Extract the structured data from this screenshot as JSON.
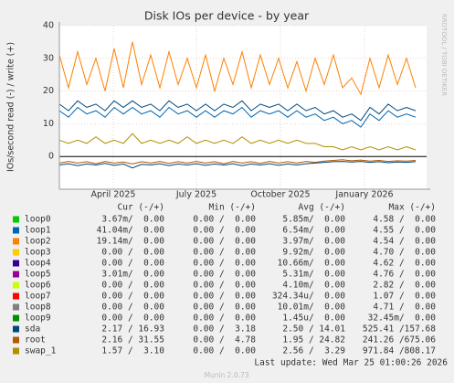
{
  "chart_data": {
    "type": "line",
    "title": "Disk IOs per device - by year",
    "y_label": "IOs/second read (-) / write (+)",
    "side_label": "RRDTOOL / TOBI OETIKER",
    "x": [
      0,
      10,
      20,
      30,
      40,
      50,
      60,
      70,
      80,
      90,
      100,
      110,
      120,
      130,
      140,
      150,
      160,
      170,
      180,
      190,
      200,
      210,
      220,
      230,
      240,
      250,
      260,
      270,
      280,
      290,
      300,
      310,
      320,
      330,
      340,
      350,
      360,
      370,
      380,
      390
    ],
    "xlim": [
      0,
      402
    ],
    "xticks": [
      {
        "value": 59,
        "label": "April 2025"
      },
      {
        "value": 150,
        "label": "July 2025"
      },
      {
        "value": 242,
        "label": "October 2025"
      },
      {
        "value": 334,
        "label": "January 2026"
      }
    ],
    "ylim": [
      -10,
      40
    ],
    "yticks": [
      0,
      10,
      20,
      30,
      40
    ],
    "grid": true,
    "series": [
      {
        "color": "#ff8000",
        "values": [
          31,
          21,
          32,
          22,
          30,
          20,
          33,
          21,
          35,
          22,
          31,
          21,
          32,
          22,
          30,
          21,
          31,
          20,
          30,
          22,
          32,
          21,
          31,
          22,
          30,
          21,
          29,
          20,
          30,
          22,
          31,
          21,
          24,
          19,
          30,
          21,
          31,
          22,
          30,
          21
        ]
      },
      {
        "color": "#0066b3",
        "values": [
          14,
          12,
          15,
          13,
          14,
          12,
          15,
          13,
          15,
          13,
          14,
          12,
          15,
          13,
          14,
          12,
          14,
          12,
          14,
          13,
          15,
          12,
          14,
          13,
          14,
          12,
          14,
          12,
          13,
          11,
          12,
          10,
          11,
          9,
          13,
          11,
          14,
          12,
          13,
          12
        ]
      },
      {
        "color": "#00487d",
        "values": [
          16,
          14,
          17,
          15,
          16,
          14,
          17,
          15,
          17,
          15,
          16,
          14,
          17,
          15,
          16,
          14,
          16,
          14,
          16,
          15,
          17,
          14,
          16,
          15,
          16,
          14,
          16,
          14,
          15,
          13,
          14,
          12,
          13,
          11,
          15,
          13,
          16,
          14,
          15,
          14
        ]
      },
      {
        "color": "#b38f00",
        "values": [
          5,
          4,
          5,
          4,
          6,
          4,
          5,
          4,
          7,
          4,
          5,
          4,
          5,
          4,
          6,
          4,
          5,
          4,
          5,
          4,
          6,
          4,
          5,
          4,
          5,
          4,
          5,
          4,
          4,
          3,
          3,
          2,
          3,
          2,
          3,
          2,
          3,
          2,
          3,
          2
        ]
      },
      {
        "color": "#b35a00",
        "values": [
          -2,
          -1.5,
          -2,
          -1.6,
          -2.2,
          -1.5,
          -2,
          -1.7,
          -2.3,
          -1.6,
          -2,
          -1.5,
          -2.1,
          -1.6,
          -2,
          -1.5,
          -2,
          -1.6,
          -2.2,
          -1.5,
          -2,
          -1.6,
          -2.1,
          -1.5,
          -2,
          -1.6,
          -2,
          -1.5,
          -1.8,
          -1.4,
          -1.2,
          -1,
          -1.3,
          -1.1,
          -1.4,
          -1.2,
          -1.5,
          -1.3,
          -1.4,
          -1.2
        ]
      },
      {
        "color": "#00487d",
        "values": [
          -2.6,
          -2.2,
          -2.8,
          -2.3,
          -2.6,
          -2.1,
          -2.7,
          -2.3,
          -3.5,
          -2.4,
          -2.6,
          -2.2,
          -2.8,
          -2.3,
          -2.6,
          -2.2,
          -2.7,
          -2.3,
          -2.6,
          -2.2,
          -2.8,
          -2.3,
          -2.6,
          -2.2,
          -2.7,
          -2.3,
          -2.6,
          -2.2,
          -2,
          -1.8,
          -1.6,
          -1.5,
          -1.7,
          -1.5,
          -1.8,
          -1.6,
          -1.9,
          -1.7,
          -1.8,
          -1.6
        ]
      }
    ],
    "legend": {
      "columns": [
        "Cur (-/+)",
        "Min (-/+)",
        "Avg (-/+)",
        "Max (-/+)"
      ],
      "rows": [
        {
          "name": "loop0",
          "color": "#00cc00",
          "cur": "3.67m/  0.00",
          "min": "0.00 /  0.00",
          "avg": "5.85m/  0.00",
          "max": "4.58 /  0.00"
        },
        {
          "name": "loop1",
          "color": "#0066b3",
          "cur": "41.04m/  0.00",
          "min": "0.00 /  0.00",
          "avg": "6.54m/  0.00",
          "max": "4.55 /  0.00"
        },
        {
          "name": "loop2",
          "color": "#ff8000",
          "cur": "19.14m/  0.00",
          "min": "0.00 /  0.00",
          "avg": "3.97m/  0.00",
          "max": "4.54 /  0.00"
        },
        {
          "name": "loop3",
          "color": "#ffcc00",
          "cur": "0.00 /  0.00",
          "min": "0.00 /  0.00",
          "avg": "9.92m/  0.00",
          "max": "4.70 /  0.00"
        },
        {
          "name": "loop4",
          "color": "#330099",
          "cur": "0.00 /  0.00",
          "min": "0.00 /  0.00",
          "avg": "10.66m/  0.00",
          "max": "4.62 /  0.00"
        },
        {
          "name": "loop5",
          "color": "#990099",
          "cur": "3.01m/  0.00",
          "min": "0.00 /  0.00",
          "avg": "5.31m/  0.00",
          "max": "4.76 /  0.00"
        },
        {
          "name": "loop6",
          "color": "#ccff00",
          "cur": "0.00 /  0.00",
          "min": "0.00 /  0.00",
          "avg": "4.10m/  0.00",
          "max": "2.82 /  0.00"
        },
        {
          "name": "loop7",
          "color": "#ff0000",
          "cur": "0.00 /  0.00",
          "min": "0.00 /  0.00",
          "avg": "324.34u/  0.00",
          "max": "1.07 /  0.00"
        },
        {
          "name": "loop8",
          "color": "#808080",
          "cur": "0.00 /  0.00",
          "min": "0.00 /  0.00",
          "avg": "10.01m/  0.00",
          "max": "4.71 /  0.00"
        },
        {
          "name": "loop9",
          "color": "#008f00",
          "cur": "0.00 /  0.00",
          "min": "0.00 /  0.00",
          "avg": "1.45u/  0.00",
          "max": "32.45m/  0.00"
        },
        {
          "name": "sda",
          "color": "#00487d",
          "cur": "2.17 / 16.93",
          "min": "0.00 /  3.18",
          "avg": "2.50 / 14.01",
          "max": "525.41 /157.68"
        },
        {
          "name": "root",
          "color": "#b35a00",
          "cur": "2.16 / 31.55",
          "min": "0.00 /  4.78",
          "avg": "1.95 / 24.82",
          "max": "241.26 /675.06"
        },
        {
          "name": "swap_1",
          "color": "#b38f00",
          "cur": "1.57 /  3.10",
          "min": "0.00 /  0.00",
          "avg": "2.56 /  3.29",
          "max": "971.84 /808.17"
        }
      ]
    },
    "last_update": "Last update: Wed Mar 25 01:00:26 2026",
    "footer": "Munin 2.0.73"
  }
}
